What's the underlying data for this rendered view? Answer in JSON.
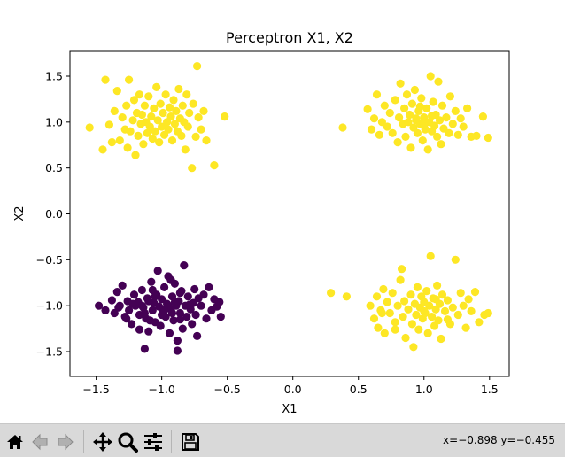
{
  "window": {
    "toolbar": {
      "buttons": [
        {
          "icon": "home-icon",
          "label": "Home"
        },
        {
          "icon": "back-icon",
          "label": "Back"
        },
        {
          "icon": "forward-icon",
          "label": "Forward"
        },
        {
          "icon": "pan-icon",
          "label": "Pan"
        },
        {
          "icon": "zoom-icon",
          "label": "Zoom"
        },
        {
          "icon": "subplots-icon",
          "label": "Configure subplots"
        },
        {
          "icon": "save-icon",
          "label": "Save"
        }
      ],
      "coordinates": "x=−0.898 y=−0.455"
    }
  },
  "chart_data": {
    "type": "scatter",
    "title": "Perceptron X1, X2",
    "xlabel": "X1",
    "ylabel": "X2",
    "xlim": [
      -1.7,
      1.65
    ],
    "ylim": [
      -1.77,
      1.77
    ],
    "xticks": [
      -1.5,
      -1.0,
      -0.5,
      0.0,
      0.5,
      1.0,
      1.5
    ],
    "xtick_labels": [
      "−1.5",
      "−1.0",
      "−0.5",
      "0.0",
      "0.5",
      "1.0",
      "1.5"
    ],
    "yticks": [
      -1.5,
      -1.0,
      -0.5,
      0.0,
      0.5,
      1.0,
      1.5
    ],
    "ytick_labels": [
      "−1.5",
      "−1.0",
      "−0.5",
      "0.0",
      "0.5",
      "1.0",
      "1.5"
    ],
    "grid": false,
    "colors": {
      "class_0": "#440154",
      "class_1": "#fde725"
    },
    "series": [
      {
        "class": 0,
        "color": "#440154",
        "points": [
          [
            -1.48,
            -1.0
          ],
          [
            -1.43,
            -1.05
          ],
          [
            -1.38,
            -0.94
          ],
          [
            -1.36,
            -1.08
          ],
          [
            -1.34,
            -0.85
          ],
          [
            -1.32,
            -1.0
          ],
          [
            -1.3,
            -0.78
          ],
          [
            -1.28,
            -1.12
          ],
          [
            -1.26,
            -0.95
          ],
          [
            -1.25,
            -1.05
          ],
          [
            -1.23,
            -1.2
          ],
          [
            -1.21,
            -0.88
          ],
          [
            -1.2,
            -1.0
          ],
          [
            -1.18,
            -0.96
          ],
          [
            -1.17,
            -1.1
          ],
          [
            -1.15,
            -0.83
          ],
          [
            -1.14,
            -1.02
          ],
          [
            -1.12,
            -1.14
          ],
          [
            -1.11,
            -0.92
          ],
          [
            -1.1,
            -1.28
          ],
          [
            -1.08,
            -0.74
          ],
          [
            -1.07,
            -1.05
          ],
          [
            -1.06,
            -0.97
          ],
          [
            -1.05,
            -1.18
          ],
          [
            -1.04,
            -0.88
          ],
          [
            -1.03,
            -0.62
          ],
          [
            -1.02,
            -1.01
          ],
          [
            -1.01,
            -1.22
          ],
          [
            -1.0,
            -0.93
          ],
          [
            -0.99,
            -1.07
          ],
          [
            -0.98,
            -0.8
          ],
          [
            -0.97,
            -1.12
          ],
          [
            -0.96,
            -0.98
          ],
          [
            -0.95,
            -0.68
          ],
          [
            -0.94,
            -1.3
          ],
          [
            -0.93,
            -1.04
          ],
          [
            -0.92,
            -0.9
          ],
          [
            -0.91,
            -1.16
          ],
          [
            -0.9,
            -0.76
          ],
          [
            -0.89,
            -1.0
          ],
          [
            -0.88,
            -1.38
          ],
          [
            -0.87,
            -0.95
          ],
          [
            -0.86,
            -1.08
          ],
          [
            -0.85,
            -0.84
          ],
          [
            -0.84,
            -1.25
          ],
          [
            -0.83,
            -0.56
          ],
          [
            -0.82,
            -1.0
          ],
          [
            -0.81,
            -1.12
          ],
          [
            -0.8,
            -0.9
          ],
          [
            -0.78,
            -1.04
          ],
          [
            -0.77,
            -1.2
          ],
          [
            -0.76,
            -0.97
          ],
          [
            -0.75,
            -0.82
          ],
          [
            -0.74,
            -1.1
          ],
          [
            -0.73,
            -1.33
          ],
          [
            -0.72,
            -0.92
          ],
          [
            -0.7,
            -1.0
          ],
          [
            -0.68,
            -0.88
          ],
          [
            -0.66,
            -1.14
          ],
          [
            -0.64,
            -0.8
          ],
          [
            -0.62,
            -1.05
          ],
          [
            -0.6,
            -0.93
          ],
          [
            -0.58,
            -1.01
          ],
          [
            -0.56,
            -0.96
          ],
          [
            -0.55,
            -1.12
          ],
          [
            -1.1,
            -0.95
          ],
          [
            -1.0,
            -1.1
          ],
          [
            -0.95,
            -1.0
          ],
          [
            -1.13,
            -1.08
          ],
          [
            -0.9,
            -0.96
          ],
          [
            -1.05,
            -0.9
          ],
          [
            -0.86,
            -1.15
          ],
          [
            -1.22,
            -0.98
          ],
          [
            -0.98,
            -1.05
          ],
          [
            -1.15,
            -1.0
          ],
          [
            -0.92,
            -1.08
          ],
          [
            -0.79,
            -0.99
          ],
          [
            -1.09,
            -1.16
          ],
          [
            -0.88,
            -1.49
          ],
          [
            -1.13,
            -1.47
          ],
          [
            -1.27,
            -1.14
          ],
          [
            -1.33,
            -1.02
          ],
          [
            -1.17,
            -1.26
          ],
          [
            -0.93,
            -0.72
          ],
          [
            -1.07,
            -0.83
          ],
          [
            -0.86,
            -0.86
          ]
        ]
      },
      {
        "class": 1,
        "color": "#fde725",
        "points": [
          [
            -1.55,
            0.94
          ],
          [
            -1.43,
            1.46
          ],
          [
            -1.4,
            0.97
          ],
          [
            -1.38,
            0.78
          ],
          [
            -1.36,
            1.12
          ],
          [
            -1.34,
            1.34
          ],
          [
            -1.32,
            0.8
          ],
          [
            -1.3,
            1.05
          ],
          [
            -1.28,
            0.92
          ],
          [
            -1.27,
            1.18
          ],
          [
            -1.25,
            1.46
          ],
          [
            -1.24,
            0.9
          ],
          [
            -1.22,
            1.02
          ],
          [
            -1.21,
            1.24
          ],
          [
            -1.2,
            0.64
          ],
          [
            -1.19,
            1.1
          ],
          [
            -1.18,
            0.85
          ],
          [
            -1.17,
            1.3
          ],
          [
            -1.16,
            0.98
          ],
          [
            -1.15,
            1.08
          ],
          [
            -1.14,
            0.76
          ],
          [
            -1.13,
            1.18
          ],
          [
            -1.12,
            1.0
          ],
          [
            -1.11,
            0.88
          ],
          [
            -1.1,
            1.28
          ],
          [
            -1.09,
            0.95
          ],
          [
            -1.08,
            1.06
          ],
          [
            -1.07,
            0.82
          ],
          [
            -1.06,
            1.15
          ],
          [
            -1.05,
            0.9
          ],
          [
            -1.04,
            1.38
          ],
          [
            -1.03,
            1.02
          ],
          [
            -1.02,
            0.78
          ],
          [
            -1.01,
            1.2
          ],
          [
            -1.0,
            0.95
          ],
          [
            -0.99,
            1.1
          ],
          [
            -0.98,
            0.86
          ],
          [
            -0.97,
            1.3
          ],
          [
            -0.96,
            1.0
          ],
          [
            -0.95,
            0.92
          ],
          [
            -0.94,
            1.16
          ],
          [
            -0.93,
            1.06
          ],
          [
            -0.92,
            0.8
          ],
          [
            -0.91,
            1.24
          ],
          [
            -0.9,
            0.98
          ],
          [
            -0.89,
            1.12
          ],
          [
            -0.88,
            0.9
          ],
          [
            -0.87,
            1.36
          ],
          [
            -0.86,
            1.04
          ],
          [
            -0.85,
            0.85
          ],
          [
            -0.84,
            1.18
          ],
          [
            -0.83,
            1.0
          ],
          [
            -0.82,
            0.7
          ],
          [
            -0.81,
            1.3
          ],
          [
            -0.8,
            0.95
          ],
          [
            -0.79,
            1.1
          ],
          [
            -0.77,
            0.5
          ],
          [
            -0.76,
            1.2
          ],
          [
            -0.74,
            0.84
          ],
          [
            -0.73,
            1.61
          ],
          [
            -0.72,
            1.05
          ],
          [
            -0.7,
            0.92
          ],
          [
            -0.68,
            1.12
          ],
          [
            -0.66,
            0.8
          ],
          [
            -0.6,
            0.53
          ],
          [
            -0.52,
            1.06
          ],
          [
            -1.45,
            0.7
          ],
          [
            -1.26,
            0.72
          ],
          [
            0.38,
            0.94
          ],
          [
            0.57,
            1.14
          ],
          [
            0.6,
            0.92
          ],
          [
            0.62,
            1.04
          ],
          [
            0.64,
            1.3
          ],
          [
            0.66,
            0.86
          ],
          [
            0.68,
            1.0
          ],
          [
            0.7,
            1.18
          ],
          [
            0.72,
            0.95
          ],
          [
            0.74,
            1.1
          ],
          [
            0.76,
            0.88
          ],
          [
            0.78,
            1.24
          ],
          [
            0.8,
            0.78
          ],
          [
            0.81,
            1.05
          ],
          [
            0.82,
            1.42
          ],
          [
            0.84,
            0.98
          ],
          [
            0.85,
            1.15
          ],
          [
            0.86,
            0.84
          ],
          [
            0.87,
            1.3
          ],
          [
            0.88,
            1.0
          ],
          [
            0.89,
            1.08
          ],
          [
            0.9,
            0.72
          ],
          [
            0.91,
            1.2
          ],
          [
            0.92,
            0.94
          ],
          [
            0.93,
            1.35
          ],
          [
            0.94,
            1.02
          ],
          [
            0.95,
            0.88
          ],
          [
            0.96,
            1.12
          ],
          [
            0.97,
            0.98
          ],
          [
            0.98,
            1.26
          ],
          [
            0.99,
            0.8
          ],
          [
            1.0,
            1.05
          ],
          [
            1.01,
            0.92
          ],
          [
            1.02,
            1.15
          ],
          [
            1.03,
            0.7
          ],
          [
            1.04,
            1.0
          ],
          [
            1.05,
            1.5
          ],
          [
            1.06,
            0.9
          ],
          [
            1.07,
            1.22
          ],
          [
            1.08,
            0.96
          ],
          [
            1.09,
            1.08
          ],
          [
            1.1,
            0.84
          ],
          [
            1.11,
            1.44
          ],
          [
            1.12,
            1.02
          ],
          [
            1.13,
            0.76
          ],
          [
            1.14,
            1.18
          ],
          [
            1.15,
            0.93
          ],
          [
            1.17,
            1.05
          ],
          [
            1.19,
            0.88
          ],
          [
            1.2,
            1.28
          ],
          [
            1.22,
            0.98
          ],
          [
            1.24,
            1.12
          ],
          [
            1.26,
            0.86
          ],
          [
            1.28,
            1.04
          ],
          [
            1.3,
            0.95
          ],
          [
            1.33,
            1.15
          ],
          [
            1.36,
            0.84
          ],
          [
            1.4,
            0.85
          ],
          [
            1.45,
            1.06
          ],
          [
            1.49,
            0.83
          ],
          [
            0.94,
            1.04
          ],
          [
            1.0,
            0.97
          ],
          [
            1.06,
            1.07
          ],
          [
            0.97,
            1.17
          ],
          [
            0.29,
            -0.86
          ],
          [
            0.59,
            -1.0
          ],
          [
            0.62,
            -1.14
          ],
          [
            0.64,
            -0.9
          ],
          [
            0.65,
            -1.24
          ],
          [
            0.67,
            -1.05
          ],
          [
            0.69,
            -0.82
          ],
          [
            0.7,
            -1.3
          ],
          [
            0.72,
            -0.96
          ],
          [
            0.74,
            -1.08
          ],
          [
            0.76,
            -0.86
          ],
          [
            0.78,
            -1.18
          ],
          [
            0.8,
            -1.0
          ],
          [
            0.82,
            -0.72
          ],
          [
            0.84,
            -1.12
          ],
          [
            0.85,
            -0.95
          ],
          [
            0.86,
            -1.35
          ],
          [
            0.88,
            -1.04
          ],
          [
            0.9,
            -0.88
          ],
          [
            0.91,
            -1.2
          ],
          [
            0.92,
            -1.45
          ],
          [
            0.93,
            -0.98
          ],
          [
            0.94,
            -1.1
          ],
          [
            0.95,
            -0.8
          ],
          [
            0.96,
            -1.26
          ],
          [
            0.97,
            -1.02
          ],
          [
            0.98,
            -0.9
          ],
          [
            0.99,
            -1.14
          ],
          [
            1.0,
            -0.96
          ],
          [
            1.01,
            -1.08
          ],
          [
            1.02,
            -0.84
          ],
          [
            1.03,
            -1.3
          ],
          [
            1.04,
            -1.0
          ],
          [
            1.05,
            -0.46
          ],
          [
            1.06,
            -1.12
          ],
          [
            1.07,
            -0.92
          ],
          [
            1.08,
            -1.22
          ],
          [
            1.09,
            -1.04
          ],
          [
            1.1,
            -0.78
          ],
          [
            1.11,
            -1.16
          ],
          [
            1.12,
            -0.98
          ],
          [
            1.13,
            -1.36
          ],
          [
            1.14,
            -0.88
          ],
          [
            1.16,
            -1.06
          ],
          [
            1.18,
            -0.94
          ],
          [
            1.2,
            -1.2
          ],
          [
            1.22,
            -1.02
          ],
          [
            1.24,
            -0.5
          ],
          [
            1.26,
            -1.1
          ],
          [
            1.28,
            -0.86
          ],
          [
            1.3,
            -1.0
          ],
          [
            1.32,
            -1.24
          ],
          [
            1.34,
            -0.93
          ],
          [
            1.36,
            -1.06
          ],
          [
            1.39,
            -0.85
          ],
          [
            1.42,
            -1.18
          ],
          [
            1.46,
            -1.1
          ],
          [
            1.49,
            -1.08
          ],
          [
            0.41,
            -0.9
          ],
          [
            0.68,
            -1.08
          ],
          [
            0.78,
            -1.26
          ],
          [
            0.83,
            -0.6
          ],
          [
            1.0,
            -1.06
          ],
          [
            1.09,
            -0.93
          ],
          [
            1.18,
            -1.15
          ]
        ]
      }
    ]
  }
}
